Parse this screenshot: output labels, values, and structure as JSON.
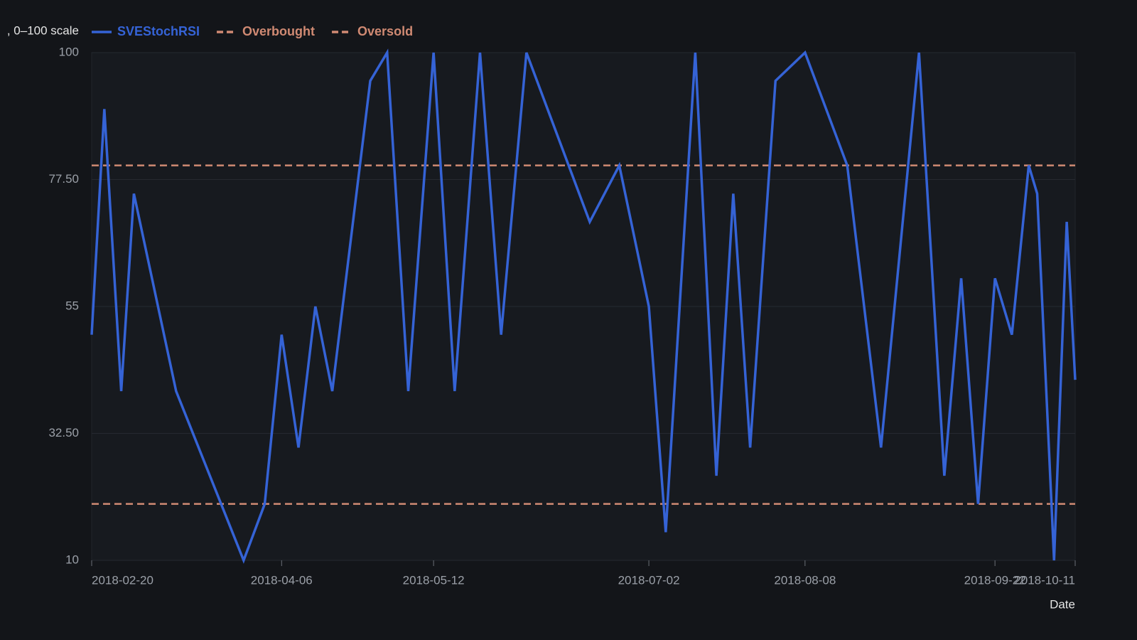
{
  "chart_data": {
    "type": "line",
    "legend_title": ", 0–100 scale",
    "x_label": "Date",
    "x": [
      "2018-02-20",
      "2018-02-23",
      "2018-02-27",
      "2018-03-02",
      "2018-03-12",
      "2018-03-28",
      "2018-04-02",
      "2018-04-06",
      "2018-04-10",
      "2018-04-14",
      "2018-04-18",
      "2018-04-27",
      "2018-05-01",
      "2018-05-06",
      "2018-05-12",
      "2018-05-17",
      "2018-05-23",
      "2018-05-28",
      "2018-06-03",
      "2018-06-18",
      "2018-06-25",
      "2018-07-02",
      "2018-07-06",
      "2018-07-13",
      "2018-07-18",
      "2018-07-22",
      "2018-07-26",
      "2018-08-01",
      "2018-08-08",
      "2018-08-18",
      "2018-08-26",
      "2018-09-04",
      "2018-09-10",
      "2018-09-14",
      "2018-09-18",
      "2018-09-22",
      "2018-09-26",
      "2018-09-30",
      "2018-10-02",
      "2018-10-06",
      "2018-10-09",
      "2018-10-11"
    ],
    "series": [
      {
        "name": "SVEStochRSI",
        "color": "#3563d6",
        "values": [
          50,
          90,
          40,
          75,
          40,
          10,
          20,
          50,
          30,
          55,
          40,
          95,
          100,
          40,
          100,
          40,
          100,
          50,
          100,
          70,
          80,
          55,
          15,
          100,
          25,
          75,
          30,
          95,
          100,
          80,
          30,
          100,
          25,
          60,
          20,
          60,
          50,
          80,
          75,
          10,
          70,
          42
        ]
      }
    ],
    "hlines": [
      {
        "name": "Overbought",
        "value": 80,
        "color": "#d08a73"
      },
      {
        "name": "Oversold",
        "value": 20,
        "color": "#d08a73"
      }
    ],
    "xlim": [
      "2018-02-20",
      "2018-10-11"
    ],
    "xticks": [
      "2018-02-20",
      "2018-04-06",
      "2018-05-12",
      "2018-07-02",
      "2018-08-08",
      "2018-09-22",
      "2018-10-11"
    ],
    "ylim": [
      10,
      100
    ],
    "yticks": [
      10,
      {
        "value": 32.5,
        "label": "32.50"
      },
      55,
      {
        "value": 77.5,
        "label": "77.50"
      },
      100
    ],
    "grid": true
  }
}
